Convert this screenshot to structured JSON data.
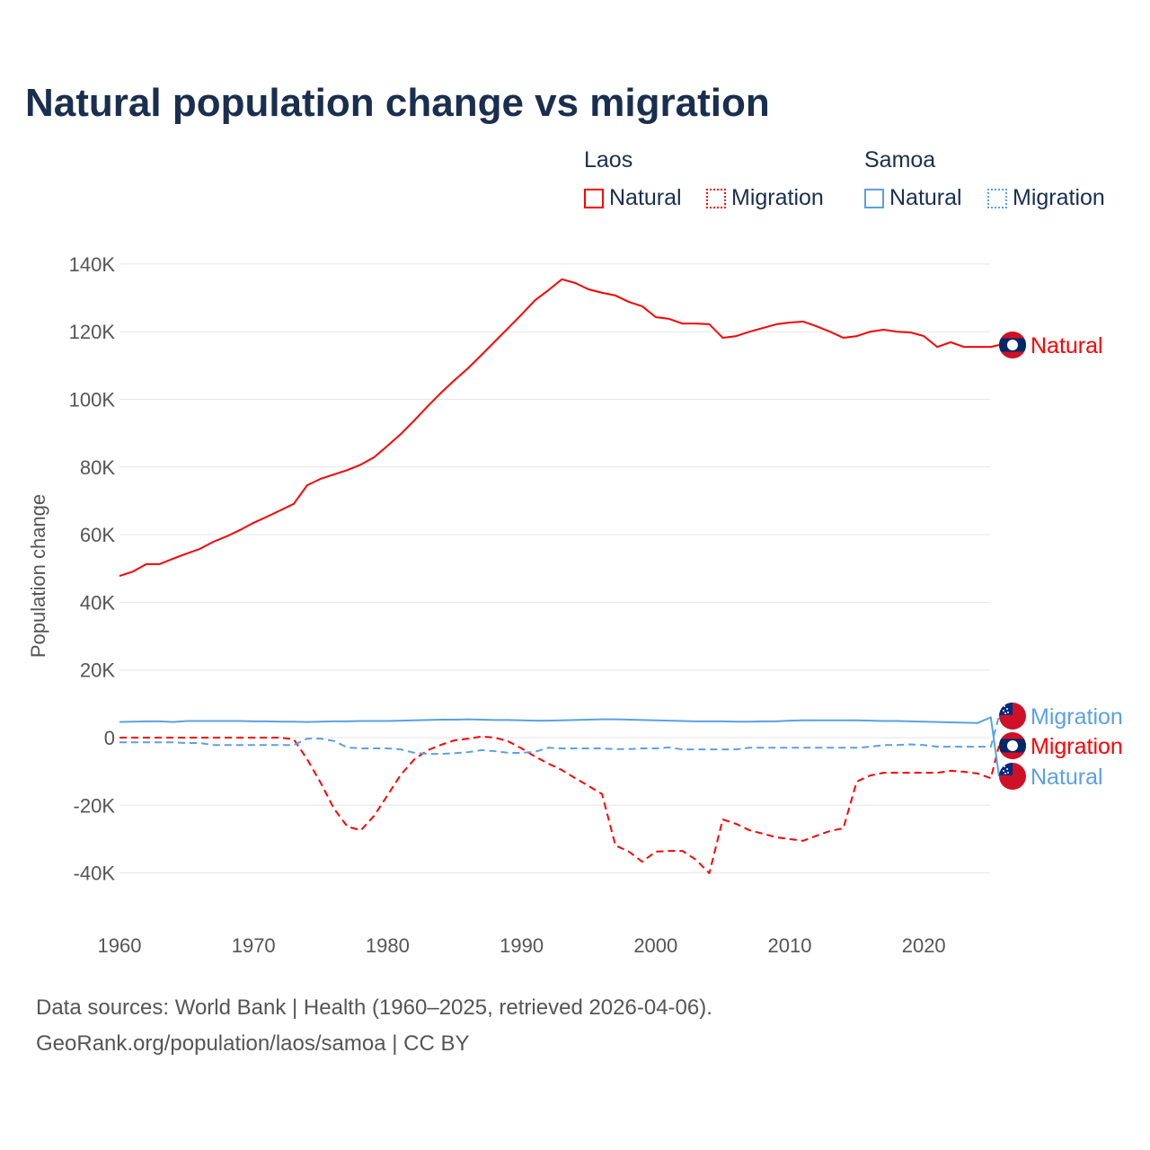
{
  "title": "Natural population change vs migration",
  "legend": {
    "groups": [
      {
        "name": "Laos",
        "items": [
          "Natural",
          "Migration"
        ],
        "color": "#ff0000"
      },
      {
        "name": "Samoa",
        "items": [
          "Natural",
          "Migration"
        ],
        "color": "#5aa0e6"
      }
    ]
  },
  "footer": {
    "line1": "Data sources: World Bank | Health (1960–2025, retrieved 2026-04-06).",
    "line2": "GeoRank.org/population/laos/samoa | CC BY"
  },
  "chart_data": {
    "type": "line",
    "title": "Natural population change vs migration",
    "ylabel": "Population change",
    "xlabel": "",
    "xlim": [
      1960,
      2025
    ],
    "ylim": [
      -50000,
      145000
    ],
    "yticks": [
      -40000,
      -20000,
      0,
      20000,
      40000,
      60000,
      80000,
      100000,
      120000,
      140000
    ],
    "ytick_labels": [
      "-40K",
      "-20K",
      "0",
      "20K",
      "40K",
      "60K",
      "80K",
      "100K",
      "120K",
      "140K"
    ],
    "xticks": [
      1960,
      1970,
      1980,
      1990,
      2000,
      2010,
      2020
    ],
    "xtick_labels": [
      "1960",
      "1970",
      "1980",
      "1990",
      "2000",
      "2010",
      "2020"
    ],
    "grid": true,
    "x_start": 1960,
    "series": [
      {
        "name": "Natural",
        "country": "Laos",
        "color": "#ff0000",
        "dash": "solid",
        "end_label": "Natural",
        "values": [
          47.8,
          49.1,
          51.3,
          51.3,
          52.9,
          54.4,
          55.8,
          57.9,
          59.5,
          61.4,
          63.5,
          65.3,
          67.2,
          69.1,
          74.6,
          76.5,
          77.8,
          79.1,
          80.7,
          82.9,
          86.3,
          89.8,
          93.8,
          98,
          102,
          105.7,
          109.2,
          113.1,
          117.1,
          121.1,
          125.1,
          129.3,
          132.3,
          135.5,
          134.4,
          132.5,
          131.5,
          130.7,
          128.8,
          127.5,
          124.3,
          123.8,
          122.4,
          122.4,
          122.2,
          118.2,
          118.7,
          120,
          121.1,
          122.2,
          122.7,
          123,
          121.6,
          120,
          118.2,
          118.7,
          120,
          120.6,
          120,
          119.8,
          118.7,
          115.5,
          116.9,
          115.5,
          115.5,
          115.5
        ]
      },
      {
        "name": "Migration",
        "country": "Laos",
        "color": "#ff0000",
        "dash": "dashed",
        "end_label": "Migration",
        "values": [
          0,
          0,
          0,
          0,
          0,
          0,
          0,
          0,
          0,
          0,
          0,
          0,
          0,
          -0.5,
          -6.4,
          -13.3,
          -21,
          -26.3,
          -27.4,
          -23.1,
          -17,
          -10.9,
          -6.4,
          -3.7,
          -2.1,
          -0.8,
          -0.3,
          0.3,
          0,
          -1.1,
          -3.2,
          -5.6,
          -7.7,
          -9.6,
          -12,
          -14.3,
          -16.7,
          -31.9,
          -33.7,
          -36.7,
          -33.7,
          -33.5,
          -33.5,
          -36.1,
          -40.1,
          -24.2,
          -25.5,
          -27.4,
          -28.4,
          -29.5,
          -30,
          -30.5,
          -29,
          -27.6,
          -26.8,
          -13,
          -11.2,
          -10.4,
          -10.4,
          -10.4,
          -10.4,
          -10.4,
          -9.8,
          -10.1,
          -10.6,
          -12
        ]
      },
      {
        "name": "Natural",
        "country": "Samoa",
        "color": "#5aa0e6",
        "dash": "solid",
        "end_label": "Natural",
        "values": [
          4.6,
          4.7,
          4.8,
          4.8,
          4.6,
          4.9,
          4.9,
          4.9,
          4.9,
          4.9,
          4.8,
          4.8,
          4.7,
          4.7,
          4.6,
          4.7,
          4.8,
          4.8,
          4.9,
          4.9,
          4.9,
          5,
          5.1,
          5.2,
          5.3,
          5.3,
          5.4,
          5.3,
          5.2,
          5.2,
          5.1,
          5,
          5,
          5.1,
          5.2,
          5.3,
          5.4,
          5.4,
          5.3,
          5.2,
          5.1,
          5,
          4.9,
          4.8,
          4.8,
          4.8,
          4.7,
          4.7,
          4.8,
          4.8,
          5,
          5.1,
          5.1,
          5.1,
          5.1,
          5.1,
          5,
          4.9,
          4.9,
          4.8,
          4.7,
          4.6,
          4.5,
          4.4,
          4.3,
          6
        ]
      },
      {
        "name": "Migration",
        "country": "Samoa",
        "color": "#5aa0e6",
        "dash": "dashed",
        "end_label": "Migration",
        "values": [
          -1.4,
          -1.4,
          -1.4,
          -1.4,
          -1.4,
          -1.6,
          -1.6,
          -2.2,
          -2.2,
          -2.2,
          -2.2,
          -2.2,
          -2.2,
          -2.2,
          -0.3,
          -0.3,
          -1,
          -2.9,
          -3.2,
          -3.2,
          -3.2,
          -3.5,
          -4.5,
          -4.8,
          -4.8,
          -4.6,
          -4.3,
          -3.7,
          -4,
          -4.5,
          -4.5,
          -4.2,
          -3,
          -3.2,
          -3.2,
          -3.2,
          -3.2,
          -3.4,
          -3.4,
          -3.2,
          -3.2,
          -2.9,
          -3.5,
          -3.5,
          -3.5,
          -3.5,
          -3.5,
          -3,
          -3,
          -3,
          -3,
          -3,
          -3,
          -3,
          -3,
          -3,
          -2.7,
          -2.2,
          -2.2,
          -2,
          -2.2,
          -2.7,
          -2.7,
          -2.7,
          -2.7,
          -2.7
        ]
      }
    ],
    "values_unit": "thousands"
  }
}
